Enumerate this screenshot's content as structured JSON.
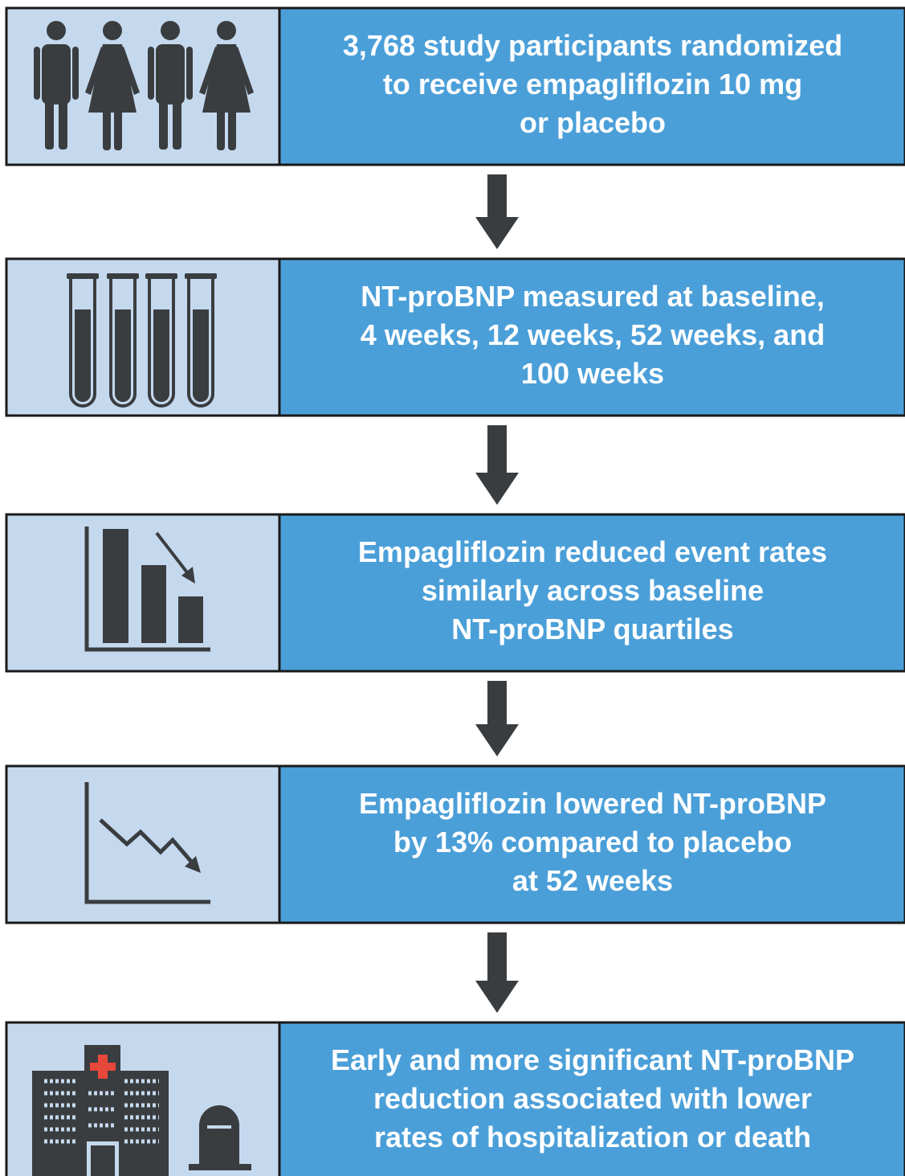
{
  "steps": [
    {
      "lines": [
        "3,768 study participants randomized",
        "to receive empagliflozin 10 mg",
        "or placebo"
      ]
    },
    {
      "lines": [
        "NT-proBNP measured at baseline,",
        "4 weeks, 12 weeks, 52 weeks, and",
        "100 weeks"
      ]
    },
    {
      "lines": [
        "Empagliflozin reduced event rates",
        "similarly across baseline",
        "NT-proBNP quartiles"
      ]
    },
    {
      "lines": [
        "Empagliflozin lowered NT-proBNP",
        "by 13% compared to placebo",
        "at 52 weeks"
      ]
    },
    {
      "lines": [
        "Early and more significant NT-proBNP",
        "reduction associated with lower",
        "rates of hospitalization or death"
      ]
    }
  ]
}
